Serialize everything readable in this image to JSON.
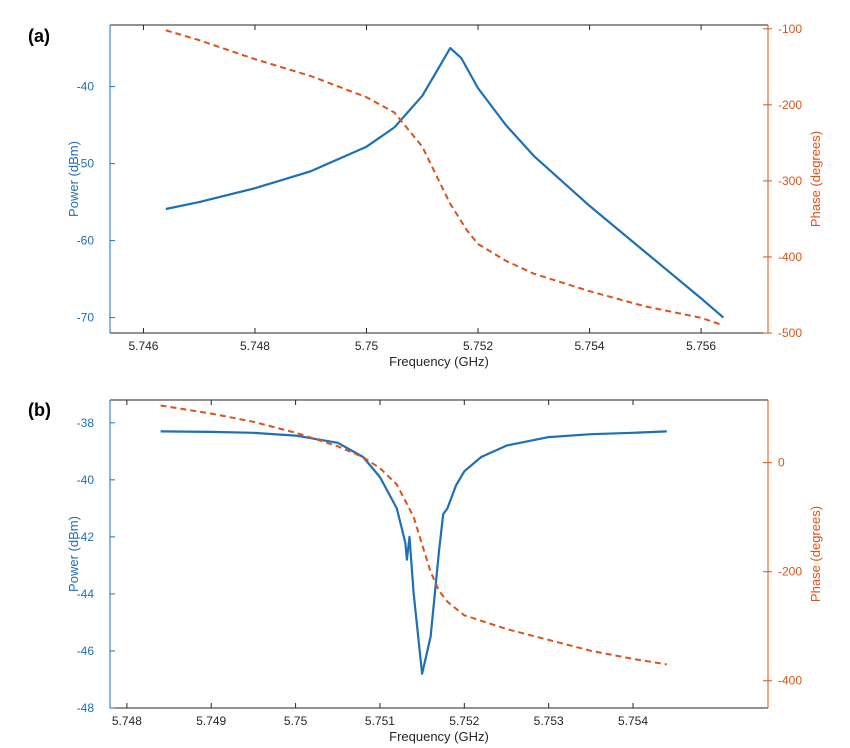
{
  "colors": {
    "power": "#1f6fb4",
    "phase": "#d9541a",
    "axis": "#262626"
  },
  "chart_data": [
    {
      "id": "a",
      "panel_label": "(a)",
      "type": "line",
      "xlabel": "Frequency (GHz)",
      "ylabel_left": "Power (dBm)",
      "ylabel_right": "Phase (degrees)",
      "xlim": [
        5.7454,
        5.7572
      ],
      "ylim_left": [
        -72,
        -32
      ],
      "ylim_right": [
        -500,
        -95
      ],
      "xticks": [
        5.746,
        5.748,
        5.75,
        5.752,
        5.754,
        5.756
      ],
      "xtick_labels": [
        "5.746",
        "5.748",
        "5.75",
        "5.752",
        "5.754",
        "5.756"
      ],
      "yticks_left": [
        -40,
        -50,
        -60,
        -70
      ],
      "ytick_labels_left": [
        "-40",
        "-50",
        "-60",
        "-70"
      ],
      "yticks_right": [
        -100,
        -200,
        -300,
        -400,
        -500
      ],
      "ytick_labels_right": [
        "-100",
        "-200",
        "-300",
        "-400",
        "-500"
      ],
      "series": [
        {
          "name": "Power",
          "axis": "left",
          "style": "solid",
          "x": [
            5.7464,
            5.747,
            5.748,
            5.749,
            5.75,
            5.7505,
            5.751,
            5.7513,
            5.7515,
            5.7517,
            5.752,
            5.7525,
            5.753,
            5.754,
            5.755,
            5.756,
            5.7564
          ],
          "y": [
            -55.9,
            -55.0,
            -53.2,
            -51.0,
            -47.8,
            -45.3,
            -41.2,
            -37.5,
            -35.0,
            -36.3,
            -40.2,
            -45.0,
            -49.0,
            -55.5,
            -61.5,
            -67.5,
            -70.0
          ]
        },
        {
          "name": "Phase",
          "axis": "right",
          "style": "dashed",
          "x": [
            5.7464,
            5.747,
            5.748,
            5.749,
            5.75,
            5.7505,
            5.751,
            5.7512,
            5.7515,
            5.7518,
            5.752,
            5.7525,
            5.753,
            5.754,
            5.755,
            5.756,
            5.7564
          ],
          "y": [
            -102,
            -115,
            -140,
            -162,
            -190,
            -210,
            -255,
            -285,
            -330,
            -365,
            -383,
            -405,
            -422,
            -445,
            -465,
            -480,
            -490
          ]
        }
      ]
    },
    {
      "id": "b",
      "panel_label": "(b)",
      "type": "line",
      "xlabel": "Frequency (GHz)",
      "ylabel_left": "Power (dBm)",
      "ylabel_right": "Phase (degrees)",
      "xlim": [
        5.7478,
        5.7556
      ],
      "ylim_left": [
        -48,
        -37.2
      ],
      "ylim_right": [
        -450,
        115
      ],
      "xticks": [
        5.748,
        5.749,
        5.75,
        5.751,
        5.752,
        5.753,
        5.754
      ],
      "xtick_labels": [
        "5.748",
        "5.749",
        "5.75",
        "5.751",
        "5.752",
        "5.753",
        "5.754"
      ],
      "yticks_left": [
        -38,
        -40,
        -42,
        -44,
        -46,
        -48
      ],
      "ytick_labels_left": [
        "-38",
        "-40",
        "-42",
        "-44",
        "-46",
        "-48"
      ],
      "yticks_right": [
        0,
        -200,
        -400
      ],
      "ytick_labels_right": [
        "0",
        "-200",
        "-400"
      ],
      "series": [
        {
          "name": "Power",
          "axis": "left",
          "style": "solid",
          "x": [
            5.7484,
            5.749,
            5.7495,
            5.75,
            5.7505,
            5.7508,
            5.751,
            5.7512,
            5.7513,
            5.75132,
            5.75135,
            5.7514,
            5.7515,
            5.7516,
            5.7517,
            5.75175,
            5.7518,
            5.7519,
            5.752,
            5.7522,
            5.7525,
            5.753,
            5.7535,
            5.754,
            5.7544
          ],
          "y": [
            -38.3,
            -38.32,
            -38.35,
            -38.45,
            -38.7,
            -39.2,
            -39.9,
            -41.0,
            -42.2,
            -42.8,
            -42.0,
            -44.0,
            -46.8,
            -45.5,
            -42.5,
            -41.2,
            -41.0,
            -40.2,
            -39.7,
            -39.2,
            -38.8,
            -38.5,
            -38.4,
            -38.35,
            -38.3
          ]
        },
        {
          "name": "Phase",
          "axis": "right",
          "style": "dashed",
          "x": [
            5.7484,
            5.749,
            5.7495,
            5.75,
            5.7505,
            5.7508,
            5.751,
            5.7512,
            5.7513,
            5.7514,
            5.7515,
            5.7516,
            5.7517,
            5.7518,
            5.752,
            5.7525,
            5.753,
            5.7535,
            5.754,
            5.7544
          ],
          "y": [
            105,
            90,
            75,
            55,
            30,
            10,
            -10,
            -40,
            -70,
            -100,
            -150,
            -200,
            -235,
            -255,
            -280,
            -305,
            -325,
            -345,
            -360,
            -370
          ]
        }
      ]
    }
  ]
}
